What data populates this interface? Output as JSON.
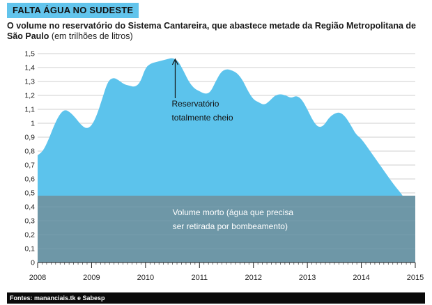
{
  "header": {
    "tag": "FALTA ÁGUA NO SUDESTE",
    "subtitle_bold": "O volume no reservatório do Sistema Cantareira, que abastece metade da Região Metropolitana de São Paulo",
    "subtitle_unit": "(em trilhões de litros)"
  },
  "footer": {
    "source": "Fontes: mananciais.tk e Sabesp"
  },
  "colors": {
    "volume_area": "#5cc3ec",
    "dead_volume": "#6e97a7",
    "background": "#ffffff",
    "grid": "#bfbfbf"
  },
  "chart_data": {
    "type": "area",
    "y_tick_labels": [
      "0",
      "0,1",
      "0,2",
      "0,3",
      "0,4",
      "0,5",
      "0,6",
      "0,7",
      "0,8",
      "0,9",
      "1",
      "1,1",
      "1,2",
      "1,3",
      "1,4",
      "1,5"
    ],
    "x_tick_labels": [
      "2008",
      "2009",
      "2010",
      "2011",
      "2012",
      "2013",
      "2014",
      "2015"
    ],
    "xlim": [
      2008,
      2015
    ],
    "ylim": [
      0,
      1.5
    ],
    "grid": true,
    "series": [
      {
        "x": [
          2008.0,
          2008.1,
          2008.2,
          2008.3,
          2008.4,
          2008.5,
          2008.6,
          2008.7,
          2008.8,
          2008.9,
          2009.0,
          2009.1,
          2009.2,
          2009.3,
          2009.4,
          2009.5,
          2009.6,
          2009.7,
          2009.8,
          2009.9,
          2010.0,
          2010.1,
          2010.2,
          2010.3,
          2010.4,
          2010.5,
          2010.6,
          2010.7,
          2010.8,
          2010.9,
          2011.0,
          2011.1,
          2011.2,
          2011.3,
          2011.4,
          2011.5,
          2011.6,
          2011.7,
          2011.8,
          2011.9,
          2012.0,
          2012.1,
          2012.2,
          2012.3,
          2012.4,
          2012.5,
          2012.6,
          2012.7,
          2012.8,
          2012.9,
          2013.0,
          2013.1,
          2013.2,
          2013.3,
          2013.4,
          2013.5,
          2013.6,
          2013.7,
          2013.8,
          2013.9,
          2014.0,
          2014.2,
          2014.4,
          2014.6,
          2014.75,
          2014.85,
          2015.0
        ],
        "values": [
          0.77,
          0.8,
          0.88,
          0.98,
          1.06,
          1.1,
          1.08,
          1.04,
          0.99,
          0.96,
          0.98,
          1.06,
          1.18,
          1.3,
          1.33,
          1.31,
          1.28,
          1.27,
          1.26,
          1.29,
          1.4,
          1.43,
          1.44,
          1.45,
          1.46,
          1.47,
          1.45,
          1.38,
          1.3,
          1.25,
          1.23,
          1.21,
          1.22,
          1.3,
          1.37,
          1.39,
          1.38,
          1.36,
          1.31,
          1.23,
          1.17,
          1.15,
          1.13,
          1.16,
          1.2,
          1.21,
          1.2,
          1.18,
          1.2,
          1.17,
          1.1,
          1.02,
          0.97,
          0.98,
          1.04,
          1.07,
          1.08,
          1.05,
          0.99,
          0.92,
          0.89,
          0.78,
          0.67,
          0.56,
          0.49,
          0.43,
          0.37
        ]
      }
    ],
    "dead_volume_level": 0.48,
    "annotations": [
      {
        "text_line1": "Reservatório",
        "text_line2": "totalmente cheio",
        "x": 2010.55,
        "y": 1.47
      },
      {
        "text_line1": "Volume morto (água que precisa",
        "text_line2": "ser retirada por bombeamento)",
        "x": 2010.5,
        "y": 0.3
      }
    ]
  }
}
